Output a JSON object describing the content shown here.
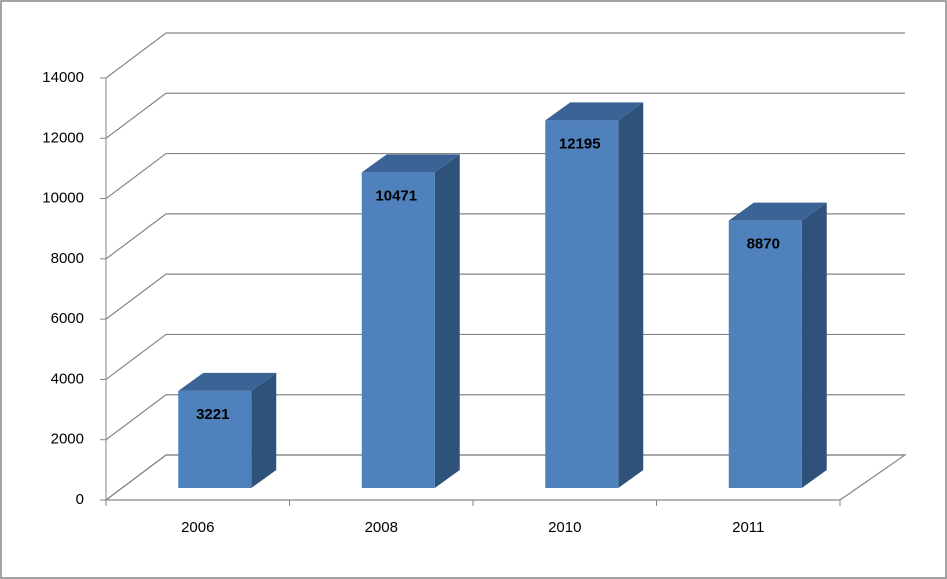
{
  "chart_data": {
    "type": "bar3d",
    "categories": [
      "2006",
      "2008",
      "2010",
      "2011"
    ],
    "values": [
      3221,
      10471,
      12195,
      8870
    ],
    "color": "#4f81bd",
    "ylim": [
      0,
      14000
    ],
    "yticks": [
      0,
      2000,
      4000,
      6000,
      8000,
      10000,
      12000,
      14000
    ],
    "grid": true
  }
}
